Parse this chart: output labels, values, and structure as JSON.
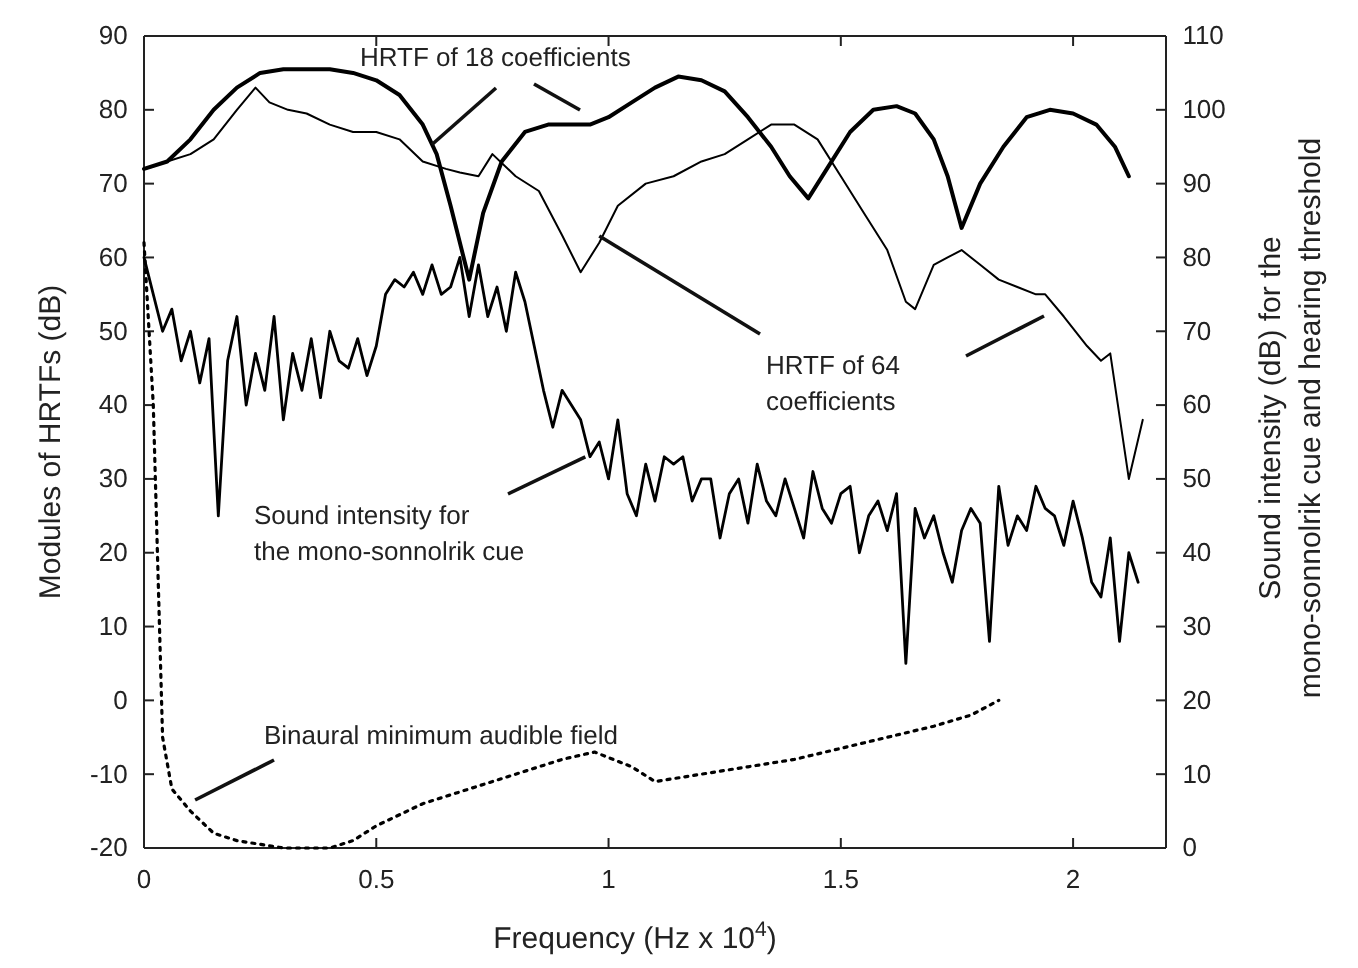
{
  "chart_data": {
    "type": "line",
    "xlabel": "Frequency (Hz x 10$^{4}$)",
    "ylabel": "Modules of HRTFs (dB)",
    "y2label": "Sound intensity (dB) for the\nmono-sonnolrik cue and hearing threshold",
    "xlim": [
      0,
      2.2
    ],
    "xticks": [
      0,
      0.5,
      1,
      1.5,
      2
    ],
    "ylim": [
      -20,
      90
    ],
    "yticks": [
      -20,
      -10,
      0,
      10,
      20,
      30,
      40,
      50,
      60,
      70,
      80,
      90
    ],
    "y2lim": [
      0,
      110
    ],
    "y2ticks": [
      0,
      10,
      20,
      30,
      40,
      50,
      60,
      70,
      80,
      90,
      100,
      110
    ],
    "grid": false,
    "marker": "none",
    "annotations": [
      {
        "text": "HRTF of 18 coefficients",
        "x": 0.62,
        "y": 75.3
      },
      {
        "text": "HRTF of 64\ncoefficients",
        "x": 0.98,
        "y": 62.9
      },
      {
        "text": "Sound intensity for\nthe mono-sonnolrik cue",
        "x": 0.95,
        "y": 33
      },
      {
        "text": "Binaural minimum audible field",
        "x": 0.11,
        "y": -13.5
      }
    ],
    "series": [
      {
        "color": "#000000",
        "line_style": "solid",
        "x": [
          0,
          0.05,
          0.1,
          0.15,
          0.2,
          0.25,
          0.3,
          0.35,
          0.4,
          0.45,
          0.5,
          0.55,
          0.6,
          0.63,
          0.66,
          0.7,
          0.73,
          0.77,
          0.82,
          0.87,
          0.92,
          0.96,
          1.0,
          1.05,
          1.1,
          1.15,
          1.2,
          1.25,
          1.3,
          1.35,
          1.39,
          1.43,
          1.47,
          1.52,
          1.57,
          1.62,
          1.66,
          1.7,
          1.73,
          1.76,
          1.8,
          1.85,
          1.9,
          1.95,
          2.0,
          2.05,
          2.09,
          2.12
        ],
        "values": [
          72,
          73,
          76,
          80,
          83,
          85,
          85.5,
          85.5,
          85.5,
          85,
          84,
          82,
          78,
          74,
          67,
          57,
          66,
          73,
          77,
          78,
          78,
          78,
          79,
          81,
          83,
          84.5,
          84,
          82.5,
          79,
          75,
          71,
          68,
          72,
          77,
          80,
          80.5,
          79.5,
          76,
          71,
          64,
          70,
          75,
          79,
          80,
          79.5,
          78,
          75,
          71
        ]
      },
      {
        "color": "#000000",
        "line_style": "solid",
        "x": [
          0,
          0.05,
          0.1,
          0.15,
          0.2,
          0.24,
          0.27,
          0.31,
          0.35,
          0.4,
          0.45,
          0.5,
          0.55,
          0.6,
          0.65,
          0.68,
          0.72,
          0.75,
          0.8,
          0.85,
          0.9,
          0.94,
          0.98,
          1.02,
          1.08,
          1.14,
          1.2,
          1.25,
          1.3,
          1.35,
          1.4,
          1.45,
          1.5,
          1.55,
          1.6,
          1.64,
          1.66,
          1.7,
          1.73,
          1.76,
          1.8,
          1.84,
          1.88,
          1.92,
          1.94,
          1.98,
          2.03,
          2.06,
          2.08,
          2.12,
          2.15
        ],
        "values": [
          72,
          73,
          74,
          76,
          80,
          83,
          81,
          80,
          79.5,
          78,
          77,
          77,
          76,
          73,
          72,
          71.5,
          71,
          74,
          71,
          69,
          63,
          58,
          62,
          67,
          70,
          71,
          73,
          74,
          76,
          78,
          78,
          76,
          71,
          66,
          61,
          54,
          53,
          59,
          60,
          61,
          59,
          57,
          56,
          55,
          55,
          52,
          48,
          46,
          47,
          30,
          38
        ]
      },
      {
        "color": "#000000",
        "line_style": "solid",
        "axis": "y2",
        "x": [
          0,
          0.02,
          0.04,
          0.06,
          0.08,
          0.1,
          0.12,
          0.14,
          0.16,
          0.18,
          0.2,
          0.22,
          0.24,
          0.26,
          0.28,
          0.3,
          0.32,
          0.34,
          0.36,
          0.38,
          0.4,
          0.42,
          0.44,
          0.46,
          0.48,
          0.5,
          0.52,
          0.54,
          0.56,
          0.58,
          0.6,
          0.62,
          0.64,
          0.66,
          0.68,
          0.7,
          0.72,
          0.74,
          0.76,
          0.78,
          0.8,
          0.82,
          0.84,
          0.86,
          0.88,
          0.9,
          0.92,
          0.94,
          0.96,
          0.98,
          1.0,
          1.02,
          1.04,
          1.06,
          1.08,
          1.1,
          1.12,
          1.14,
          1.16,
          1.18,
          1.2,
          1.22,
          1.24,
          1.26,
          1.28,
          1.3,
          1.32,
          1.34,
          1.36,
          1.38,
          1.4,
          1.42,
          1.44,
          1.46,
          1.48,
          1.5,
          1.52,
          1.54,
          1.56,
          1.58,
          1.6,
          1.62,
          1.64,
          1.66,
          1.68,
          1.7,
          1.72,
          1.74,
          1.76,
          1.78,
          1.8,
          1.82,
          1.84,
          1.86,
          1.88,
          1.9,
          1.92,
          1.94,
          1.96,
          1.98,
          2.0,
          2.02,
          2.04,
          2.06,
          2.08,
          2.1,
          2.12,
          2.14
        ],
        "values": [
          80,
          75,
          70,
          73,
          66,
          70,
          63,
          69,
          45,
          66,
          72,
          60,
          67,
          62,
          72,
          58,
          67,
          62,
          69,
          61,
          70,
          66,
          65,
          69,
          64,
          68,
          75,
          77,
          76,
          78,
          75,
          79,
          75,
          76,
          80,
          72,
          79,
          72,
          76,
          70,
          78,
          74,
          68,
          62,
          57,
          62,
          60,
          58,
          53,
          55,
          50,
          58,
          48,
          45,
          52,
          47,
          53,
          52,
          53,
          47,
          50,
          50,
          42,
          48,
          50,
          44,
          52,
          47,
          45,
          50,
          46,
          42,
          51,
          46,
          44,
          48,
          49,
          40,
          45,
          47,
          43,
          48,
          25,
          46,
          42,
          45,
          40,
          36,
          43,
          46,
          44,
          28,
          49,
          41,
          45,
          43,
          49,
          46,
          45,
          41,
          47,
          42,
          36,
          34,
          42,
          28,
          40,
          36
        ]
      },
      {
        "color": "#000000",
        "line_style": "dotted",
        "axis": "y2",
        "x": [
          0,
          0.02,
          0.04,
          0.06,
          0.1,
          0.15,
          0.2,
          0.25,
          0.3,
          0.35,
          0.4,
          0.45,
          0.5,
          0.6,
          0.7,
          0.8,
          0.9,
          0.97,
          1.05,
          1.1,
          1.2,
          1.3,
          1.4,
          1.5,
          1.6,
          1.7,
          1.78,
          1.84
        ],
        "values": [
          82,
          60,
          15,
          8,
          5,
          2,
          1,
          0.5,
          0,
          0,
          0,
          1,
          3,
          6,
          8,
          10,
          12,
          13,
          11,
          9,
          10,
          11,
          12,
          13.5,
          15,
          16.5,
          18,
          20
        ]
      }
    ]
  }
}
